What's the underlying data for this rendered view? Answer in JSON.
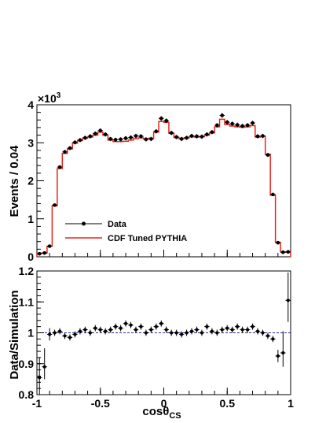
{
  "chart_data": [
    {
      "type": "line",
      "xlim": [
        -1,
        1
      ],
      "ylim": [
        0,
        4000
      ],
      "ylabel": "Events / 0.04",
      "multiplier_label": "×10",
      "multiplier_exponent": "3",
      "yticks": [
        {
          "value": 0,
          "label": "0"
        },
        {
          "value": 1000,
          "label": "1"
        },
        {
          "value": 2000,
          "label": "2"
        },
        {
          "value": 3000,
          "label": "3"
        },
        {
          "value": 4000,
          "label": "4"
        }
      ],
      "legend_position": "center-left",
      "colors": {
        "data": "#000000",
        "simulation": "#e8241f"
      },
      "series": [
        {
          "name": "Data",
          "style": "points-with-errors",
          "x": [
            -0.98,
            -0.94,
            -0.9,
            -0.86,
            -0.82,
            -0.78,
            -0.74,
            -0.7,
            -0.66,
            -0.62,
            -0.58,
            -0.54,
            -0.5,
            -0.46,
            -0.42,
            -0.38,
            -0.34,
            -0.3,
            -0.26,
            -0.22,
            -0.18,
            -0.14,
            -0.1,
            -0.06,
            -0.02,
            0.02,
            0.06,
            0.1,
            0.14,
            0.18,
            0.22,
            0.26,
            0.3,
            0.34,
            0.38,
            0.42,
            0.46,
            0.5,
            0.54,
            0.58,
            0.62,
            0.66,
            0.7,
            0.74,
            0.78,
            0.82,
            0.86,
            0.9,
            0.94,
            0.98
          ],
          "y": [
            80,
            100,
            280,
            1360,
            2360,
            2760,
            2860,
            3010,
            3070,
            3130,
            3170,
            3240,
            3320,
            3220,
            3100,
            3080,
            3090,
            3120,
            3140,
            3180,
            3170,
            3090,
            3100,
            3300,
            3640,
            3580,
            3260,
            3150,
            3100,
            3130,
            3180,
            3170,
            3160,
            3220,
            3280,
            3460,
            3720,
            3540,
            3500,
            3470,
            3440,
            3460,
            3520,
            3170,
            3180,
            2680,
            1640,
            370,
            120,
            130
          ]
        },
        {
          "name": "CDF Tuned PYTHIA",
          "style": "step",
          "x": [
            -0.98,
            -0.94,
            -0.9,
            -0.86,
            -0.82,
            -0.78,
            -0.74,
            -0.7,
            -0.66,
            -0.62,
            -0.58,
            -0.54,
            -0.5,
            -0.46,
            -0.42,
            -0.38,
            -0.34,
            -0.3,
            -0.26,
            -0.22,
            -0.18,
            -0.14,
            -0.1,
            -0.06,
            -0.02,
            0.02,
            0.06,
            0.1,
            0.14,
            0.18,
            0.22,
            0.26,
            0.3,
            0.34,
            0.38,
            0.42,
            0.46,
            0.5,
            0.54,
            0.58,
            0.62,
            0.66,
            0.7,
            0.74,
            0.78,
            0.82,
            0.86,
            0.9,
            0.94,
            0.98
          ],
          "y": [
            90,
            100,
            280,
            1340,
            2320,
            2720,
            2840,
            2990,
            3060,
            3120,
            3150,
            3200,
            3280,
            3200,
            3070,
            3030,
            3030,
            3040,
            3070,
            3110,
            3130,
            3100,
            3120,
            3280,
            3560,
            3540,
            3250,
            3140,
            3110,
            3130,
            3160,
            3150,
            3160,
            3200,
            3260,
            3420,
            3620,
            3480,
            3440,
            3420,
            3410,
            3420,
            3450,
            3150,
            3170,
            2700,
            1620,
            380,
            130,
            120
          ]
        }
      ]
    },
    {
      "type": "scatter",
      "xlim": [
        -1,
        1
      ],
      "ylim": [
        0.8,
        1.2
      ],
      "xlabel_main": "cosθ",
      "xlabel_sub": "CS",
      "ylabel": "Data/Simulation",
      "reference_line": 1,
      "colors": {
        "points": "#000000",
        "reference": "#2a2a8c"
      },
      "xticks": [
        {
          "value": -1,
          "label": "-1"
        },
        {
          "value": -0.5,
          "label": "-0.5"
        },
        {
          "value": 0,
          "label": "0"
        },
        {
          "value": 0.5,
          "label": "0.5"
        },
        {
          "value": 1,
          "label": "1"
        }
      ],
      "yticks": [
        {
          "value": 0.8,
          "label": "0.8"
        },
        {
          "value": 0.9,
          "label": "0.9"
        },
        {
          "value": 1.0,
          "label": "1"
        },
        {
          "value": 1.1,
          "label": "1.1"
        },
        {
          "value": 1.2,
          "label": "1.2"
        }
      ],
      "x": [
        -0.98,
        -0.94,
        -0.9,
        -0.86,
        -0.82,
        -0.78,
        -0.74,
        -0.7,
        -0.66,
        -0.62,
        -0.58,
        -0.54,
        -0.5,
        -0.46,
        -0.42,
        -0.38,
        -0.34,
        -0.3,
        -0.26,
        -0.22,
        -0.18,
        -0.14,
        -0.1,
        -0.06,
        -0.02,
        0.02,
        0.06,
        0.1,
        0.14,
        0.18,
        0.22,
        0.26,
        0.3,
        0.34,
        0.38,
        0.42,
        0.46,
        0.5,
        0.54,
        0.58,
        0.62,
        0.66,
        0.7,
        0.74,
        0.78,
        0.82,
        0.86,
        0.9,
        0.94,
        0.98
      ],
      "ratio": [
        0.855,
        0.89,
        0.995,
        1.0,
        1.005,
        0.99,
        0.985,
        0.995,
        1.005,
        1.01,
        1.0,
        1.015,
        1.01,
        1.005,
        1.01,
        1.02,
        1.015,
        1.03,
        1.025,
        1.01,
        1.02,
        1.0,
        1.01,
        1.02,
        1.03,
        1.01,
        1.0,
        1.0,
        0.995,
        1.0,
        1.005,
        1.01,
        1.0,
        1.02,
        1.005,
        1.0,
        1.01,
        1.015,
        1.01,
        1.02,
        1.01,
        1.01,
        1.02,
        1.005,
        1.0,
        0.99,
        0.98,
        0.925,
        0.935,
        1.105
      ],
      "err_low": [
        0.06,
        0.04,
        0.02,
        0.01,
        0.01,
        0.01,
        0.01,
        0.01,
        0.01,
        0.01,
        0.01,
        0.01,
        0.01,
        0.01,
        0.01,
        0.01,
        0.01,
        0.01,
        0.01,
        0.01,
        0.01,
        0.01,
        0.01,
        0.01,
        0.01,
        0.01,
        0.01,
        0.01,
        0.01,
        0.01,
        0.01,
        0.01,
        0.01,
        0.01,
        0.01,
        0.01,
        0.01,
        0.01,
        0.01,
        0.01,
        0.01,
        0.01,
        0.01,
        0.01,
        0.01,
        0.01,
        0.01,
        0.02,
        0.045,
        0.07
      ],
      "err_high": [
        0.065,
        0.06,
        0.02,
        0.01,
        0.01,
        0.01,
        0.01,
        0.01,
        0.01,
        0.01,
        0.01,
        0.01,
        0.01,
        0.01,
        0.01,
        0.01,
        0.01,
        0.01,
        0.01,
        0.01,
        0.01,
        0.01,
        0.01,
        0.01,
        0.01,
        0.01,
        0.01,
        0.01,
        0.01,
        0.01,
        0.01,
        0.01,
        0.01,
        0.01,
        0.01,
        0.01,
        0.01,
        0.01,
        0.01,
        0.01,
        0.01,
        0.01,
        0.01,
        0.01,
        0.01,
        0.01,
        0.01,
        0.02,
        0.07,
        0.09
      ]
    }
  ]
}
